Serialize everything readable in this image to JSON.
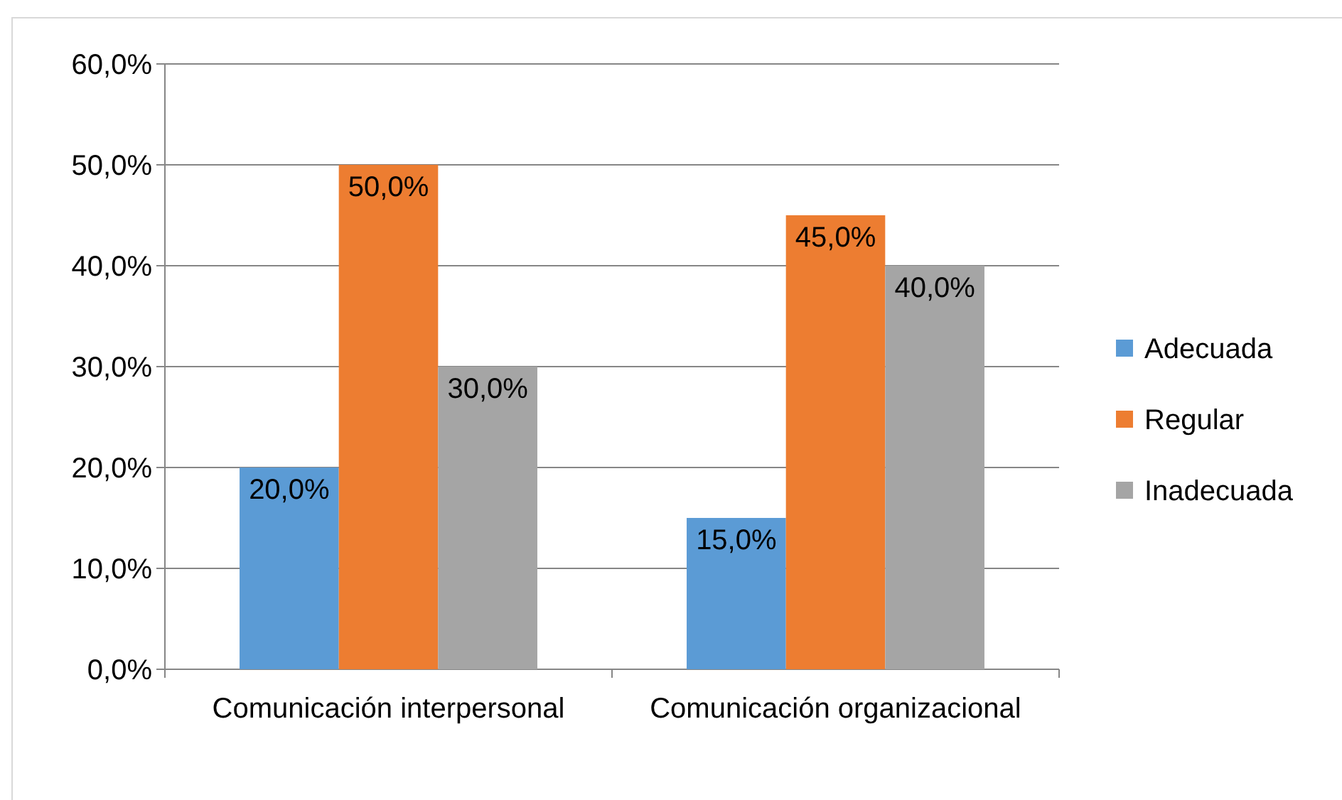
{
  "chart_data": {
    "type": "bar",
    "categories": [
      "Comunicación interpersonal",
      "Comunicación organizacional"
    ],
    "series": [
      {
        "name": "Adecuada",
        "color": "#5b9bd5",
        "values": [
          20,
          15
        ],
        "value_labels": [
          "20,0%",
          "15,0%"
        ]
      },
      {
        "name": "Regular",
        "color": "#ed7d31",
        "values": [
          50,
          45
        ],
        "value_labels": [
          "50,0%",
          "45,0%"
        ]
      },
      {
        "name": "Inadecuada",
        "color": "#a5a5a5",
        "values": [
          30,
          40
        ],
        "value_labels": [
          "30,0%",
          "40,0%"
        ]
      }
    ],
    "ylim": [
      0,
      60
    ],
    "yticks": [
      {
        "value": 0,
        "label": "0,0%"
      },
      {
        "value": 10,
        "label": "10,0%"
      },
      {
        "value": 20,
        "label": "20,0%"
      },
      {
        "value": 30,
        "label": "30,0%"
      },
      {
        "value": 40,
        "label": "40,0%"
      },
      {
        "value": 50,
        "label": "50,0%"
      },
      {
        "value": 60,
        "label": "60,0%"
      }
    ],
    "grid": "y",
    "legend": "right"
  }
}
